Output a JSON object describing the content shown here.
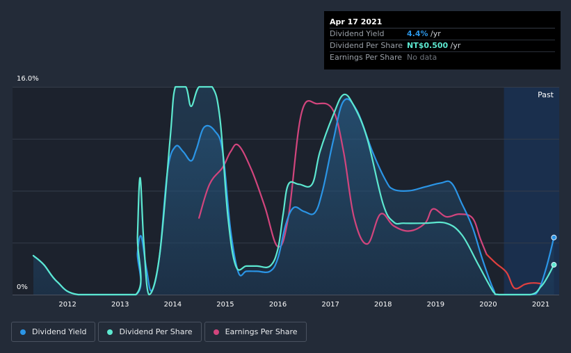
{
  "tooltip": {
    "date": "Apr 17 2021",
    "rows": [
      {
        "label": "Dividend Yield",
        "value": "4.4%",
        "unit": " /yr"
      },
      {
        "label": "Dividend Per Share",
        "value": "NT$0.500",
        "unit": " /yr"
      },
      {
        "label": "Earnings Per Share",
        "value": "No data",
        "unit": ""
      }
    ]
  },
  "colors": {
    "background": "#232b38",
    "dividend_yield": "#2b95e6",
    "dividend_per_share": "#5de8d0",
    "earnings_per_share": "#d2457d",
    "earnings_negative": "#e0403f",
    "past_region": "#1a3050"
  },
  "legend": [
    {
      "name": "Dividend Yield",
      "color": "#2b95e6"
    },
    {
      "name": "Dividend Per Share",
      "color": "#5de8d0"
    },
    {
      "name": "Earnings Per Share",
      "color": "#d2457d"
    }
  ],
  "chart_data": {
    "type": "line",
    "title": "",
    "xlabel": "",
    "ylabel": "",
    "ytick_labels": [
      "16.0%",
      "0%"
    ],
    "ylim": [
      0,
      16
    ],
    "xlim": [
      2011.35,
      2021.35
    ],
    "xticks": [
      2012,
      2013,
      2014,
      2015,
      2016,
      2017,
      2018,
      2019,
      2020,
      2021
    ],
    "past_label": "Past",
    "past_start": 2020.3,
    "series": [
      {
        "name": "Dividend Yield",
        "key": "dividend_yield",
        "area": true,
        "end_marker": true,
        "points": [
          [
            2011.35,
            3.0
          ],
          [
            2011.55,
            2.3
          ],
          [
            2011.8,
            1.0
          ],
          [
            2012.2,
            0
          ],
          [
            2013.3,
            0
          ],
          [
            2013.33,
            3.2
          ],
          [
            2013.4,
            4.5
          ],
          [
            2013.5,
            2.0
          ],
          [
            2013.6,
            0.3
          ],
          [
            2013.75,
            3.0
          ],
          [
            2013.9,
            9.5
          ],
          [
            2014.05,
            11.4
          ],
          [
            2014.2,
            11.0
          ],
          [
            2014.35,
            10.3
          ],
          [
            2014.45,
            11.2
          ],
          [
            2014.6,
            12.9
          ],
          [
            2014.8,
            12.6
          ],
          [
            2014.95,
            11.0
          ],
          [
            2015.1,
            5.0
          ],
          [
            2015.25,
            1.7
          ],
          [
            2015.4,
            1.8
          ],
          [
            2015.6,
            1.8
          ],
          [
            2015.85,
            1.8
          ],
          [
            2016.0,
            2.8
          ],
          [
            2016.15,
            5.4
          ],
          [
            2016.3,
            6.7
          ],
          [
            2016.5,
            6.4
          ],
          [
            2016.7,
            6.3
          ],
          [
            2016.85,
            8.0
          ],
          [
            2017.05,
            11.8
          ],
          [
            2017.25,
            14.9
          ],
          [
            2017.5,
            14.2
          ],
          [
            2017.8,
            11.0
          ],
          [
            2018.05,
            8.8
          ],
          [
            2018.2,
            8.1
          ],
          [
            2018.5,
            8.0
          ],
          [
            2018.8,
            8.3
          ],
          [
            2019.1,
            8.6
          ],
          [
            2019.3,
            8.6
          ],
          [
            2019.5,
            7.0
          ],
          [
            2019.7,
            5.2
          ],
          [
            2019.9,
            2.6
          ],
          [
            2020.1,
            0.4
          ],
          [
            2020.2,
            0
          ],
          [
            2020.8,
            0
          ],
          [
            2020.95,
            0.3
          ],
          [
            2021.1,
            2.0
          ],
          [
            2021.25,
            4.4
          ]
        ]
      },
      {
        "name": "Dividend Per Share",
        "key": "dividend_per_share",
        "area": true,
        "end_marker": true,
        "points": [
          [
            2011.35,
            3.0
          ],
          [
            2011.55,
            2.3
          ],
          [
            2011.8,
            1.0
          ],
          [
            2012.2,
            0
          ],
          [
            2013.3,
            0
          ],
          [
            2013.33,
            4.5
          ],
          [
            2013.38,
            9.0
          ],
          [
            2013.45,
            4.0
          ],
          [
            2013.55,
            0
          ],
          [
            2013.75,
            3.0
          ],
          [
            2013.95,
            12.0
          ],
          [
            2014.05,
            16.0
          ],
          [
            2014.25,
            16.0
          ],
          [
            2014.35,
            14.5
          ],
          [
            2014.5,
            16.0
          ],
          [
            2014.75,
            16.0
          ],
          [
            2014.9,
            13.5
          ],
          [
            2015.05,
            6.0
          ],
          [
            2015.2,
            2.2
          ],
          [
            2015.4,
            2.2
          ],
          [
            2015.6,
            2.2
          ],
          [
            2015.85,
            2.2
          ],
          [
            2016.0,
            3.5
          ],
          [
            2016.1,
            6.2
          ],
          [
            2016.2,
            8.5
          ],
          [
            2016.4,
            8.5
          ],
          [
            2016.65,
            8.5
          ],
          [
            2016.8,
            11.0
          ],
          [
            2017.05,
            13.8
          ],
          [
            2017.25,
            15.4
          ],
          [
            2017.45,
            14.5
          ],
          [
            2017.7,
            12.0
          ],
          [
            2018.0,
            7.0
          ],
          [
            2018.2,
            5.6
          ],
          [
            2018.4,
            5.5
          ],
          [
            2018.8,
            5.5
          ],
          [
            2019.2,
            5.5
          ],
          [
            2019.5,
            4.6
          ],
          [
            2019.8,
            2.4
          ],
          [
            2020.1,
            0.2
          ],
          [
            2020.2,
            0
          ],
          [
            2020.8,
            0
          ],
          [
            2021.0,
            0.6
          ],
          [
            2021.12,
            1.3
          ],
          [
            2021.25,
            2.3
          ]
        ]
      },
      {
        "name": "Earnings Per Share",
        "key": "earnings_per_share",
        "area": false,
        "end_marker": false,
        "points": [
          [
            2014.5,
            5.9
          ],
          [
            2014.7,
            8.5
          ],
          [
            2014.95,
            9.8
          ],
          [
            2015.1,
            11.0
          ],
          [
            2015.25,
            11.5
          ],
          [
            2015.5,
            9.6
          ],
          [
            2015.75,
            6.8
          ],
          [
            2016.0,
            3.7
          ],
          [
            2016.2,
            6.0
          ],
          [
            2016.45,
            14.0
          ],
          [
            2016.75,
            14.7
          ],
          [
            2017.05,
            14.2
          ],
          [
            2017.25,
            11.0
          ],
          [
            2017.45,
            5.9
          ],
          [
            2017.7,
            3.9
          ],
          [
            2017.95,
            6.2
          ],
          [
            2018.2,
            5.3
          ],
          [
            2018.5,
            4.9
          ],
          [
            2018.8,
            5.5
          ],
          [
            2018.95,
            6.6
          ],
          [
            2019.2,
            6.0
          ],
          [
            2019.45,
            6.2
          ],
          [
            2019.7,
            5.9
          ],
          [
            2019.85,
            4.3
          ],
          [
            2019.97,
            3.1
          ]
        ],
        "negative_segment_points": [
          [
            2019.97,
            3.1
          ],
          [
            2020.15,
            2.4
          ],
          [
            2020.35,
            1.7
          ],
          [
            2020.5,
            0.5
          ],
          [
            2020.7,
            0.8
          ],
          [
            2020.85,
            0.9
          ],
          [
            2021.0,
            0.85
          ]
        ]
      }
    ]
  }
}
